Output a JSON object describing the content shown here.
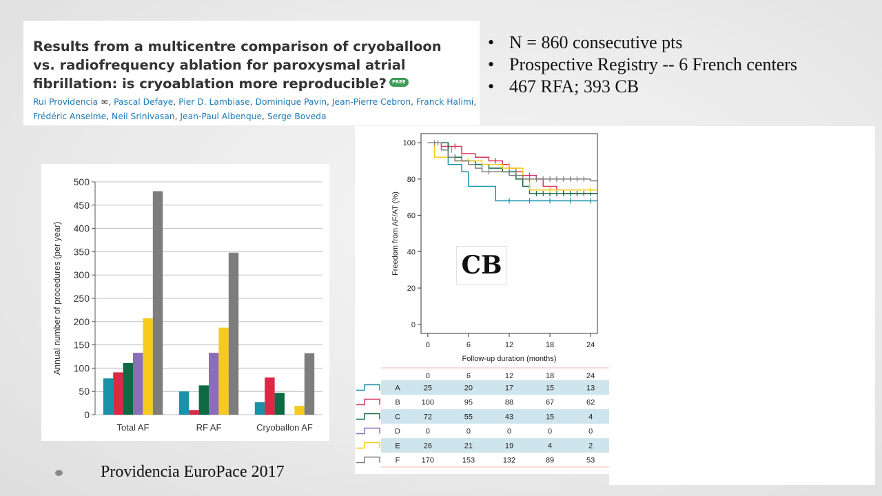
{
  "paper": {
    "title": "Results from a multicentre comparison of cryoballoon vs. radiofrequency ablation for paroxysmal atrial fibrillation: is cryoablation more reproducible?",
    "badge": "FREE",
    "authors": [
      "Rui Providencia",
      "Pascal Defaye",
      "Pier D. Lambiase",
      "Dominique Pavin",
      "Jean-Pierre Cebron",
      "Franck Halimi",
      "Frédéric Anselme",
      "Neil Srinivasan",
      "Jean-Paul Albenque",
      "Serge Boveda"
    ]
  },
  "bullets": [
    "N = 860 consecutive pts",
    "Prospective Registry -- 6 French centers",
    "467 RFA; 393 CB"
  ],
  "cb_label": "CB",
  "caption": "Providencia EuroPace 2017",
  "chart_data": [
    {
      "type": "bar",
      "ylabel": "Annual number of procedures (per year)",
      "xlabel": "",
      "ylim": [
        0,
        500
      ],
      "yticks": [
        0,
        50,
        100,
        150,
        200,
        250,
        300,
        350,
        400,
        450,
        500
      ],
      "grid": true,
      "categories": [
        "Total AF",
        "RF AF",
        "Cryoballon AF"
      ],
      "series": [
        {
          "color": "#1a93a8",
          "values": [
            78,
            50,
            27
          ]
        },
        {
          "color": "#dd2747",
          "values": [
            91,
            10,
            80
          ]
        },
        {
          "color": "#0e6a43",
          "values": [
            111,
            63,
            47
          ]
        },
        {
          "color": "#8a6ebb",
          "values": [
            133,
            133,
            0
          ]
        },
        {
          "color": "#f7cb1c",
          "values": [
            207,
            187,
            19
          ]
        },
        {
          "color": "#7d7d7d",
          "values": [
            480,
            348,
            132
          ]
        }
      ]
    },
    {
      "type": "line",
      "xlabel": "Follow-up duration (months)",
      "ylabel": "Freedom from AF/AT (%)",
      "xlim": [
        -1,
        25
      ],
      "ylim": [
        -5,
        105
      ],
      "xticks": [
        0,
        6,
        12,
        18,
        24
      ],
      "yticks": [
        0,
        20,
        40,
        60,
        80,
        100
      ],
      "series": [
        {
          "name": "A",
          "color": "#1a93a8",
          "points": [
            [
              0,
              100
            ],
            [
              3,
              100
            ],
            [
              3,
              88
            ],
            [
              5,
              88
            ],
            [
              5,
              84
            ],
            [
              6,
              84
            ],
            [
              6,
              76
            ],
            [
              10,
              76
            ],
            [
              10,
              68
            ],
            [
              25,
              68
            ]
          ],
          "censor": [
            [
              12,
              68
            ],
            [
              15,
              68
            ],
            [
              18,
              68
            ],
            [
              21,
              68
            ],
            [
              24,
              68
            ]
          ]
        },
        {
          "name": "B",
          "color": "#d9345a",
          "points": [
            [
              0,
              100
            ],
            [
              2,
              100
            ],
            [
              2,
              98
            ],
            [
              5,
              98
            ],
            [
              5,
              94
            ],
            [
              7,
              94
            ],
            [
              7,
              92
            ],
            [
              9,
              92
            ],
            [
              9,
              90
            ],
            [
              11,
              90
            ],
            [
              11,
              88
            ],
            [
              12,
              88
            ],
            [
              12,
              86
            ],
            [
              13,
              86
            ],
            [
              13,
              84
            ],
            [
              14,
              84
            ],
            [
              14,
              82
            ],
            [
              16,
              82
            ],
            [
              16,
              80
            ],
            [
              17,
              80
            ],
            [
              17,
              76
            ],
            [
              19,
              76
            ],
            [
              19,
              74
            ],
            [
              20,
              74
            ],
            [
              20,
              72
            ],
            [
              25,
              72
            ]
          ],
          "censor": [
            [
              4,
              98
            ],
            [
              10,
              90
            ],
            [
              15,
              82
            ],
            [
              22,
              72
            ]
          ]
        },
        {
          "name": "C",
          "color": "#0e6a43",
          "points": [
            [
              0,
              100
            ],
            [
              3,
              100
            ],
            [
              3,
              92
            ],
            [
              5,
              92
            ],
            [
              5,
              90
            ],
            [
              7,
              90
            ],
            [
              7,
              88
            ],
            [
              9,
              88
            ],
            [
              9,
              86
            ],
            [
              11,
              86
            ],
            [
              11,
              84
            ],
            [
              13,
              84
            ],
            [
              13,
              80
            ],
            [
              14,
              80
            ],
            [
              14,
              76
            ],
            [
              15,
              76
            ],
            [
              15,
              72
            ],
            [
              25,
              72
            ]
          ],
          "censor": [
            [
              4,
              92
            ],
            [
              8,
              88
            ],
            [
              12,
              84
            ],
            [
              16,
              72
            ],
            [
              17,
              72
            ],
            [
              18,
              72
            ],
            [
              19,
              72
            ],
            [
              20,
              72
            ],
            [
              21,
              72
            ],
            [
              22,
              72
            ],
            [
              23,
              72
            ],
            [
              24,
              72
            ]
          ]
        },
        {
          "name": "E",
          "color": "#f7cb1c",
          "points": [
            [
              0,
              100
            ],
            [
              1,
              100
            ],
            [
              1,
              92
            ],
            [
              4,
              92
            ],
            [
              4,
              90
            ],
            [
              8,
              90
            ],
            [
              8,
              88
            ],
            [
              11,
              88
            ],
            [
              11,
              86
            ],
            [
              14,
              86
            ],
            [
              14,
              80
            ],
            [
              15,
              80
            ],
            [
              15,
              74
            ],
            [
              25,
              74
            ]
          ],
          "censor": [
            [
              6,
              90
            ],
            [
              12,
              88
            ],
            [
              18,
              74
            ],
            [
              24,
              74
            ]
          ]
        },
        {
          "name": "F",
          "color": "#7d7d7d",
          "points": [
            [
              0,
              100
            ],
            [
              2,
              100
            ],
            [
              2,
              96
            ],
            [
              3,
              96
            ],
            [
              3,
              92
            ],
            [
              4,
              92
            ],
            [
              4,
              90
            ],
            [
              6,
              90
            ],
            [
              6,
              88
            ],
            [
              7,
              88
            ],
            [
              7,
              86
            ],
            [
              8,
              86
            ],
            [
              8,
              84
            ],
            [
              12,
              84
            ],
            [
              12,
              82
            ],
            [
              14,
              82
            ],
            [
              14,
              80
            ],
            [
              24,
              80
            ],
            [
              24,
              79
            ],
            [
              25,
              79
            ]
          ],
          "censor": [
            [
              1,
              100
            ],
            [
              1.5,
              100
            ],
            [
              3.5,
              96
            ],
            [
              5,
              92
            ],
            [
              9,
              84
            ],
            [
              13,
              84
            ],
            [
              15,
              80
            ],
            [
              16,
              80
            ],
            [
              17,
              80
            ],
            [
              18,
              80
            ],
            [
              19,
              80
            ],
            [
              20,
              80
            ],
            [
              21,
              80
            ],
            [
              22,
              80
            ],
            [
              23,
              80
            ]
          ]
        }
      ],
      "risk_table": {
        "times": [
          0,
          6,
          12,
          18,
          24
        ],
        "rows": [
          {
            "label": "A",
            "color": "#1a93a8",
            "values": [
              25,
              20,
              17,
              15,
              13
            ]
          },
          {
            "label": "B",
            "color": "#d9345a",
            "values": [
              100,
              95,
              88,
              67,
              62
            ]
          },
          {
            "label": "C",
            "color": "#0e6a43",
            "values": [
              72,
              55,
              43,
              15,
              4
            ]
          },
          {
            "label": "D",
            "color": "#8a6ebb",
            "values": [
              0,
              0,
              0,
              0,
              0
            ]
          },
          {
            "label": "E",
            "color": "#f7cb1c",
            "values": [
              26,
              21,
              19,
              4,
              2
            ]
          },
          {
            "label": "F",
            "color": "#7d7d7d",
            "values": [
              170,
              153,
              132,
              89,
              53
            ]
          }
        ]
      }
    }
  ]
}
